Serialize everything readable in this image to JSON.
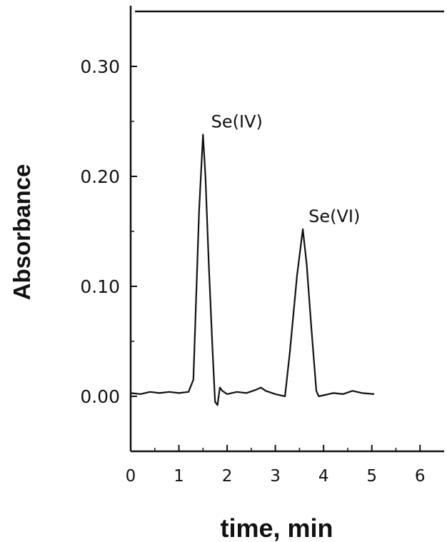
{
  "chart_data": {
    "type": "line",
    "title": "",
    "xlabel": "time, min",
    "ylabel": "Absorbance",
    "xlim": [
      0,
      6.5
    ],
    "ylim": [
      -0.05,
      0.35
    ],
    "x_ticks": [
      0,
      1,
      2,
      3,
      4,
      5,
      6
    ],
    "x_tick_labels": [
      "0",
      "1",
      "2",
      "3",
      "4",
      "5",
      "6"
    ],
    "y_ticks": [
      0.0,
      0.1,
      0.2,
      0.3
    ],
    "y_tick_labels": [
      "0.00",
      "0.10",
      "0.20",
      "0.30"
    ],
    "grid": false,
    "colors": {
      "line": "#111111",
      "axis": "#111111",
      "background": "#ffffff"
    },
    "series": [
      {
        "x": [
          0.0,
          0.2,
          0.4,
          0.6,
          0.8,
          1.0,
          1.2,
          1.3,
          1.35,
          1.42,
          1.5,
          1.55,
          1.62,
          1.7,
          1.75,
          1.8,
          1.85,
          1.9,
          2.0,
          2.2,
          2.4,
          2.6,
          2.7,
          2.8,
          3.0,
          3.2,
          3.3,
          3.45,
          3.57,
          3.65,
          3.75,
          3.85,
          3.9,
          4.0,
          4.2,
          4.4,
          4.6,
          4.8,
          5.05
        ],
        "y": [
          0.003,
          0.002,
          0.004,
          0.003,
          0.004,
          0.003,
          0.004,
          0.015,
          0.08,
          0.17,
          0.238,
          0.2,
          0.12,
          0.04,
          -0.005,
          -0.008,
          0.008,
          0.005,
          0.002,
          0.004,
          0.003,
          0.006,
          0.008,
          0.005,
          0.002,
          0.0,
          0.04,
          0.11,
          0.152,
          0.12,
          0.06,
          0.005,
          0.0,
          0.001,
          0.003,
          0.002,
          0.005,
          0.003,
          0.002
        ]
      }
    ],
    "annotations": [
      {
        "text": "Se(IV)",
        "x": 1.55,
        "y": 0.238
      },
      {
        "text": "Se(VI)",
        "x": 3.57,
        "y": 0.152
      }
    ]
  }
}
